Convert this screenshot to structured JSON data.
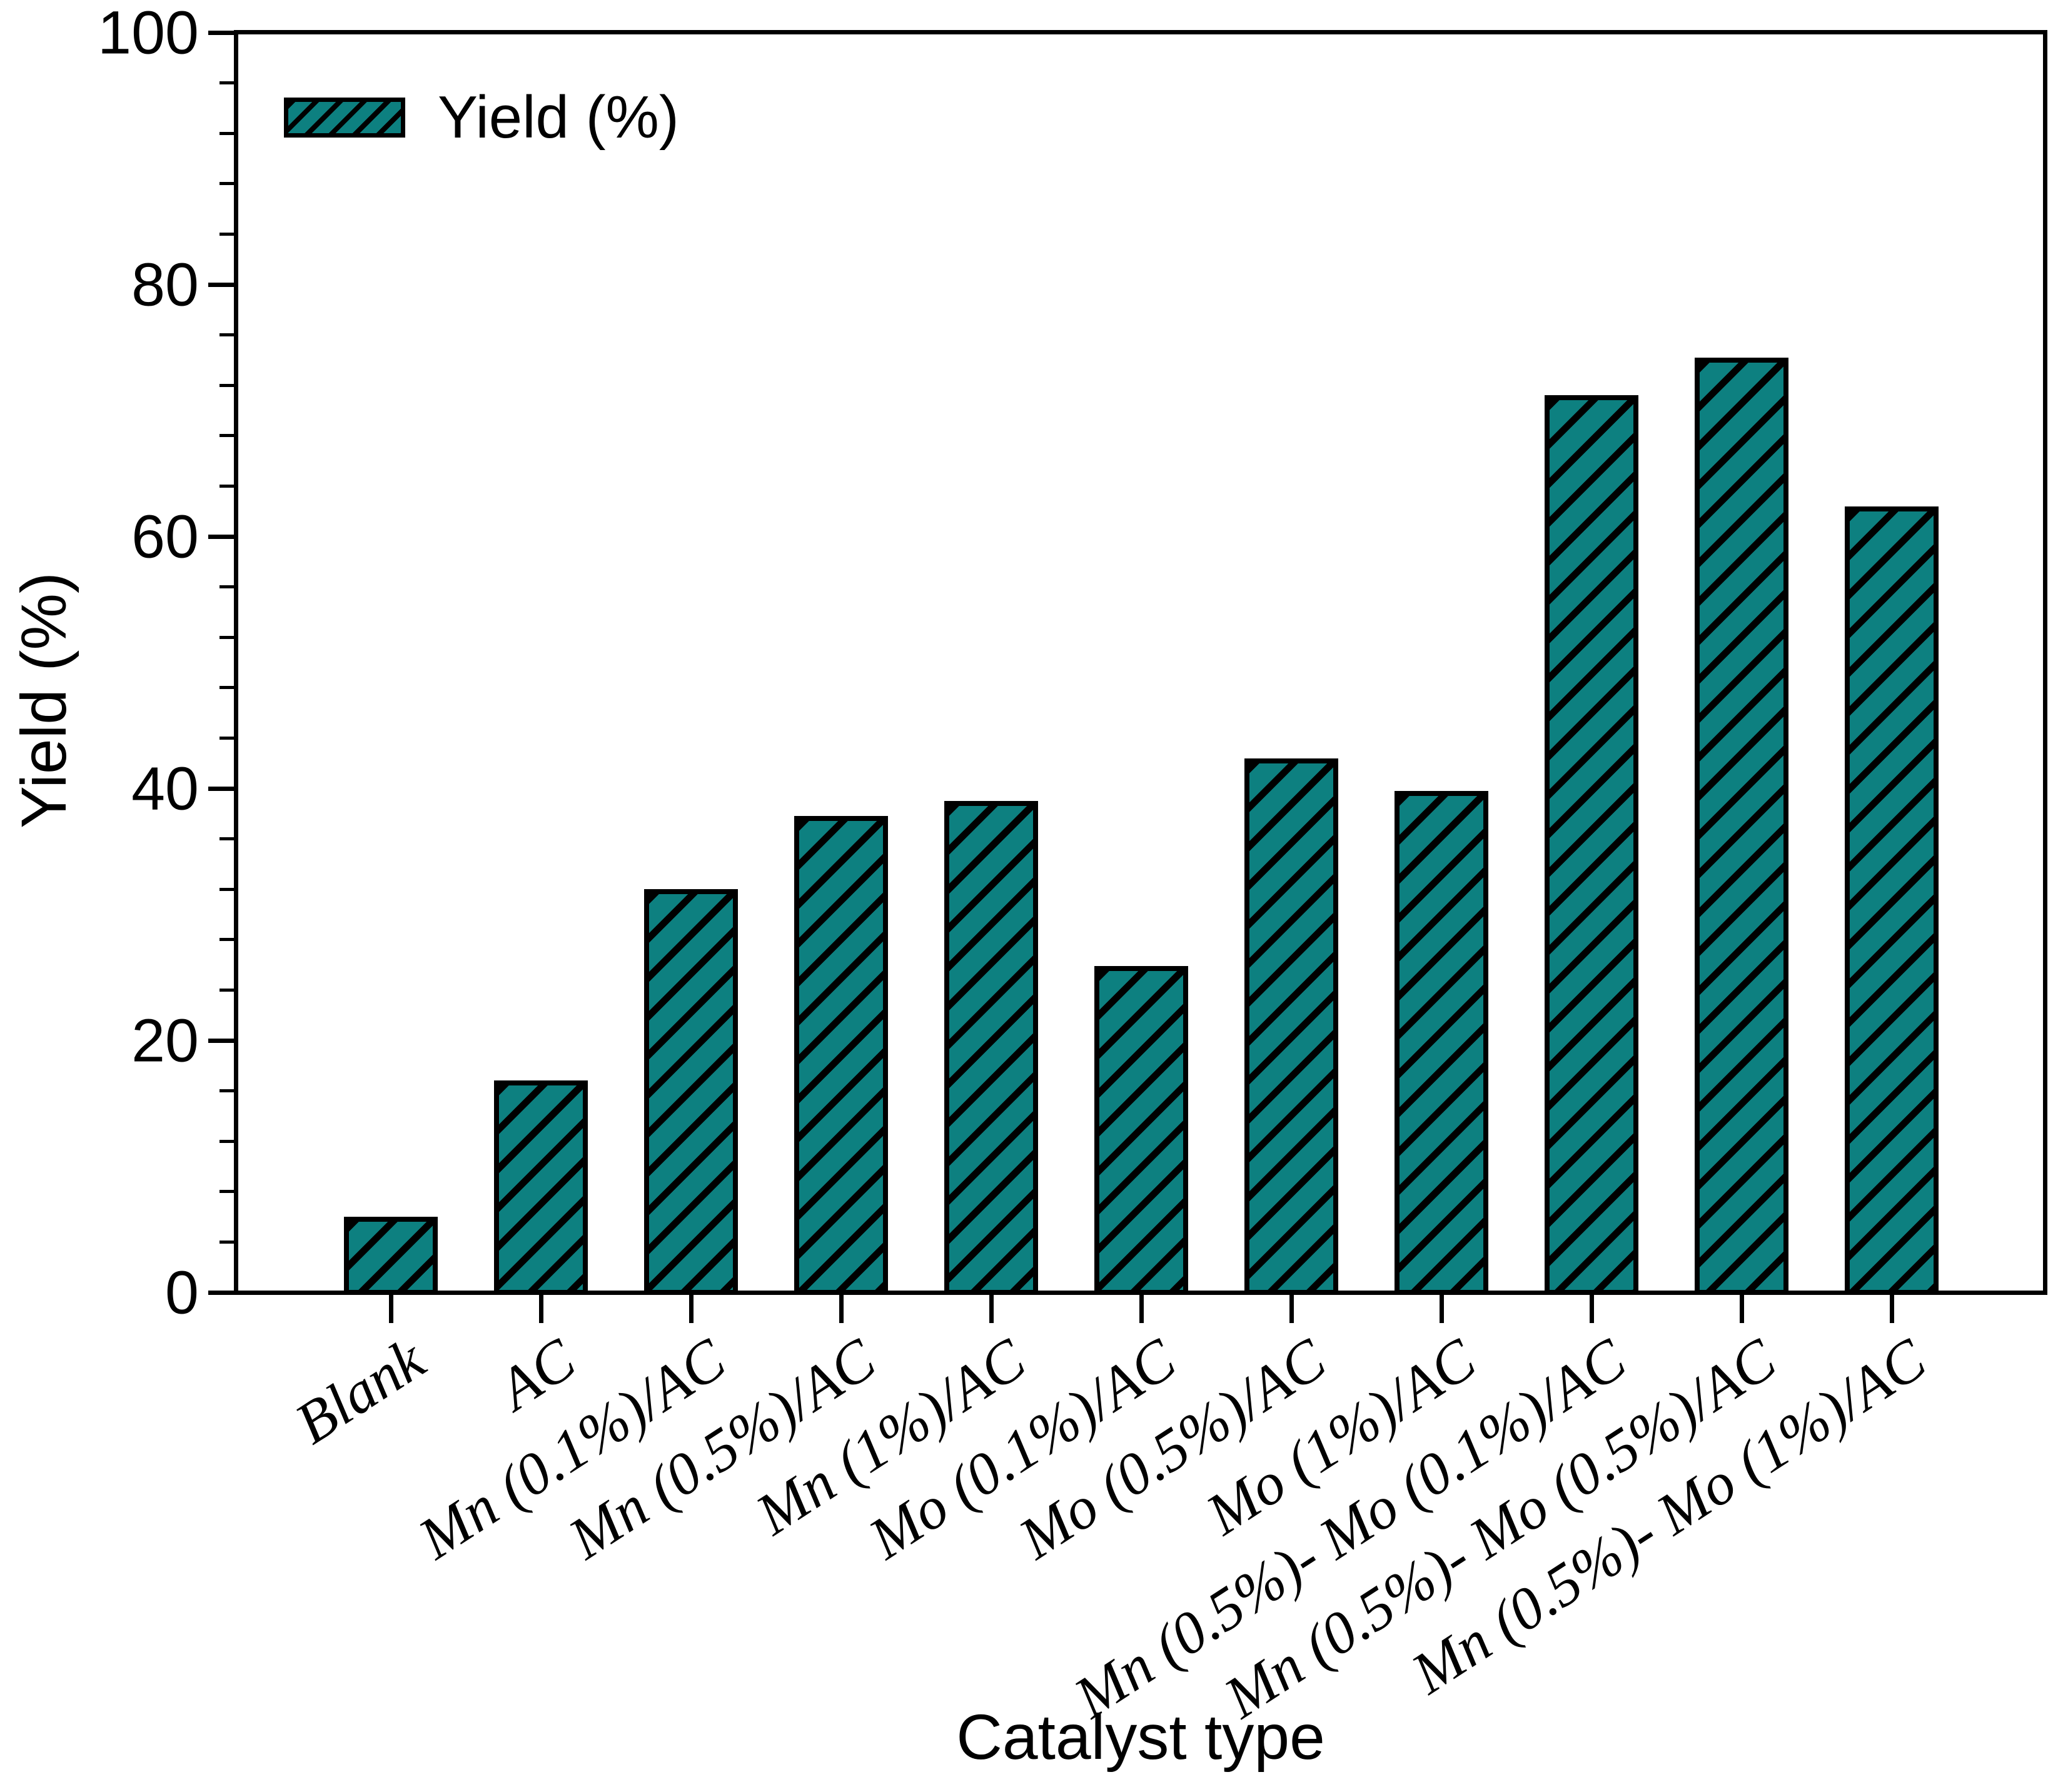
{
  "chart_data": {
    "type": "bar",
    "title": "",
    "xlabel": "Catalyst type",
    "ylabel": "Yield (%)",
    "legend_label": "Yield (%)",
    "legend_position": "top-left-inside",
    "categories": [
      "Blank",
      "AC",
      "Mn (0.1%)/AC",
      "Mn (0.5%)/AC",
      "Mn (1%)/AC",
      "Mo (0.1%)/AC",
      "Mo (0.5%)/AC",
      "Mo (1%)/AC",
      "Mn (0.5%)- Mo (0.1%)/AC",
      "Mn (0.5%)- Mo (0.5%)/AC",
      "Mn (0.5%)- Mo (1%)/AC"
    ],
    "values": [
      6.0,
      16.8,
      32.0,
      37.8,
      39.0,
      25.9,
      42.4,
      39.8,
      71.2,
      74.2,
      62.4
    ],
    "ylim": [
      0,
      100
    ],
    "y_major_ticks": [
      0,
      20,
      40,
      60,
      80,
      100
    ],
    "y_minor_step": 4,
    "grid": false,
    "frame_box": true,
    "bar_fill_color": "#0D8080",
    "bar_edge_color": "#000000",
    "hatch_style": "forward-diagonal",
    "x_tick_label_rotation_deg": -33
  }
}
